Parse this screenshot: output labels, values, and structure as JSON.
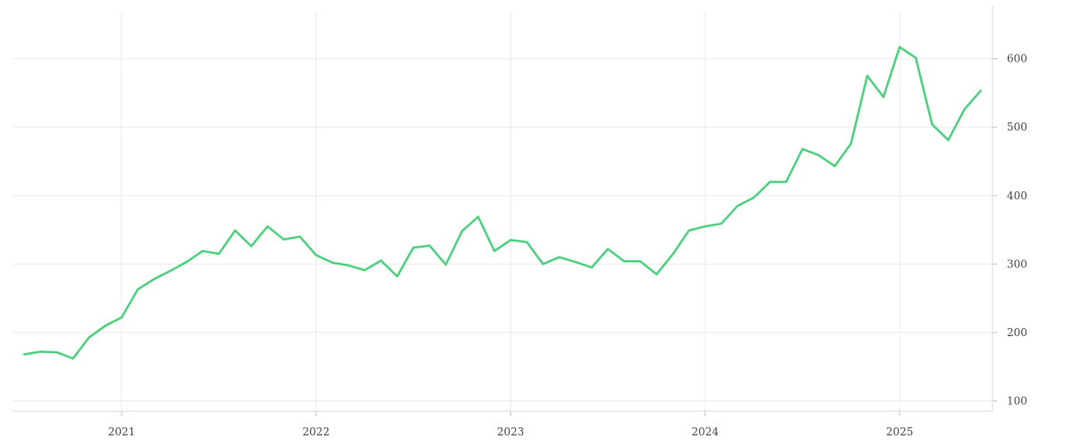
{
  "chart_data": {
    "type": "line",
    "title": "",
    "xlabel": "",
    "ylabel": "",
    "x_ticks": [
      "2021",
      "2022",
      "2023",
      "2024",
      "2025"
    ],
    "y_ticks": [
      100,
      200,
      300,
      400,
      500,
      600
    ],
    "xlim": [
      "2020-07",
      "2025-06"
    ],
    "ylim": [
      85,
      670
    ],
    "grid": true,
    "y_axis_position": "right",
    "legend": "none",
    "series": [
      {
        "color": "#4cd07d",
        "x": [
          "2020-07",
          "2020-08",
          "2020-09",
          "2020-10",
          "2020-11",
          "2020-12",
          "2021-01",
          "2021-02",
          "2021-03",
          "2021-04",
          "2021-05",
          "2021-06",
          "2021-07",
          "2021-08",
          "2021-09",
          "2021-10",
          "2021-11",
          "2021-12",
          "2022-01",
          "2022-02",
          "2022-03",
          "2022-04",
          "2022-05",
          "2022-06",
          "2022-07",
          "2022-08",
          "2022-09",
          "2022-10",
          "2022-11",
          "2022-12",
          "2023-01",
          "2023-02",
          "2023-03",
          "2023-04",
          "2023-05",
          "2023-06",
          "2023-07",
          "2023-08",
          "2023-09",
          "2023-10",
          "2023-11",
          "2023-12",
          "2024-01",
          "2024-02",
          "2024-03",
          "2024-04",
          "2024-05",
          "2024-06",
          "2024-07",
          "2024-08",
          "2024-09",
          "2024-10",
          "2024-11",
          "2024-12",
          "2025-01",
          "2025-02",
          "2025-03",
          "2025-04",
          "2025-05",
          "2025-06"
        ],
        "values": [
          168,
          172,
          171,
          162,
          193,
          210,
          222,
          263,
          278,
          290,
          303,
          319,
          315,
          349,
          326,
          355,
          336,
          340,
          313,
          302,
          298,
          291,
          305,
          282,
          324,
          327,
          299,
          348,
          369,
          319,
          335,
          332,
          300,
          310,
          303,
          295,
          322,
          304,
          304,
          285,
          314,
          349,
          355,
          359,
          385,
          397,
          420,
          420,
          468,
          459,
          443,
          476,
          575,
          544,
          617,
          601,
          504,
          481,
          526,
          553
        ]
      }
    ]
  }
}
